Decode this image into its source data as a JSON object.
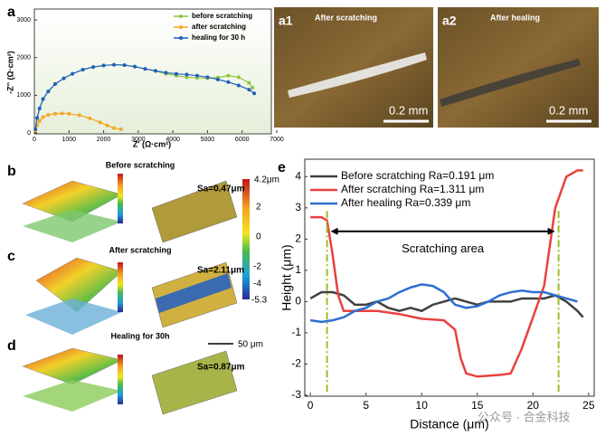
{
  "chart_data": [
    {
      "type": "line",
      "xlabel": "Z' (Ω·cm²)",
      "ylabel": "-Z'' (Ω·cm²)",
      "xlim": [
        0,
        7000
      ],
      "xticks": [
        0,
        1000,
        2000,
        3000,
        4000,
        5000,
        6000,
        7000
      ],
      "ylim": [
        0,
        3000
      ],
      "yticks": [
        0,
        1000,
        2000,
        3000
      ],
      "markers": true,
      "series": [
        {
          "name": "before scratching",
          "color": "#8dc63f",
          "x": [
            30,
            80,
            150,
            250,
            400,
            600,
            850,
            1100,
            1400,
            1700,
            2000,
            2300,
            2600,
            2900,
            3200,
            3500,
            3800,
            4100,
            4400,
            4700,
            5000,
            5300,
            5600,
            5900,
            6200,
            6300
          ],
          "values": [
            100,
            400,
            650,
            900,
            1100,
            1300,
            1450,
            1570,
            1680,
            1750,
            1790,
            1810,
            1800,
            1760,
            1700,
            1640,
            1570,
            1520,
            1480,
            1460,
            1450,
            1470,
            1520,
            1480,
            1330,
            1200
          ]
        },
        {
          "name": "after scratching",
          "color": "#f5a623",
          "x": [
            30,
            80,
            150,
            250,
            400,
            600,
            800,
            1000,
            1300,
            1600,
            1900,
            2100,
            2300,
            2500
          ],
          "values": [
            60,
            200,
            320,
            420,
            480,
            510,
            520,
            510,
            470,
            390,
            280,
            200,
            130,
            100
          ]
        },
        {
          "name": "healing for 30 h",
          "color": "#1f5fbf",
          "x": [
            30,
            80,
            150,
            250,
            400,
            600,
            850,
            1100,
            1400,
            1700,
            2000,
            2300,
            2600,
            2900,
            3200,
            3500,
            3800,
            4100,
            4400,
            4700,
            5000,
            5300,
            5600,
            5900,
            6200,
            6350
          ],
          "values": [
            100,
            400,
            650,
            900,
            1100,
            1300,
            1450,
            1570,
            1680,
            1750,
            1790,
            1810,
            1800,
            1760,
            1700,
            1650,
            1600,
            1570,
            1550,
            1520,
            1480,
            1420,
            1350,
            1260,
            1150,
            1050
          ]
        }
      ]
    },
    {
      "type": "line",
      "xlabel": "Distance (μm)",
      "ylabel": "Height (μm)",
      "annotation": "Scratching area",
      "xlim": [
        -0.5,
        25.5
      ],
      "xticks": [
        0,
        5,
        10,
        15,
        20,
        25
      ],
      "ylim": [
        -3,
        4.5
      ],
      "yticks": [
        -3,
        -2,
        -1,
        0,
        1,
        2,
        3,
        4
      ],
      "markers": false,
      "series": [
        {
          "name": "Before scratching Ra=0.191 μm",
          "color": "#404040",
          "x": [
            0,
            1,
            2,
            3,
            4,
            5,
            6,
            7,
            8,
            9,
            10,
            11,
            12,
            13,
            14,
            15,
            16,
            17,
            18,
            19,
            20,
            21,
            22,
            23,
            24,
            24.5
          ],
          "values": [
            0.1,
            0.3,
            0.3,
            0.2,
            -0.1,
            -0.1,
            0,
            -0.2,
            -0.3,
            -0.2,
            -0.3,
            -0.1,
            0,
            0.1,
            0,
            -0.1,
            0,
            0,
            0,
            0.1,
            0.1,
            0.1,
            0.2,
            0,
            -0.3,
            -0.5
          ]
        },
        {
          "name": "After scratching Ra=1.311 μm",
          "color": "#e8413f",
          "x": [
            0,
            1,
            1.5,
            2,
            2.5,
            3,
            4,
            6,
            8,
            10,
            12,
            13,
            13.5,
            14,
            15,
            17,
            18,
            19,
            20,
            21,
            22,
            23,
            24,
            24.5
          ],
          "values": [
            2.7,
            2.7,
            2.6,
            1.5,
            0.2,
            -0.3,
            -0.3,
            -0.3,
            -0.4,
            -0.55,
            -0.6,
            -0.9,
            -1.8,
            -2.3,
            -2.4,
            -2.35,
            -2.3,
            -1.5,
            -0.5,
            0.5,
            3,
            4,
            4.2,
            4.2
          ]
        },
        {
          "name": "After healing Ra=0.339 μm",
          "color": "#2e6fd0",
          "x": [
            0,
            1,
            2,
            3,
            4,
            5,
            6,
            7,
            8,
            9,
            10,
            11,
            12,
            13,
            14,
            15,
            16,
            17,
            18,
            19,
            20,
            21,
            22,
            23,
            24
          ],
          "values": [
            -0.6,
            -0.65,
            -0.6,
            -0.5,
            -0.3,
            -0.2,
            0,
            0.1,
            0.3,
            0.45,
            0.55,
            0.5,
            0.3,
            -0.1,
            -0.2,
            -0.15,
            0,
            0.2,
            0.3,
            0.35,
            0.3,
            0.3,
            0.2,
            0.1,
            0
          ]
        }
      ]
    }
  ],
  "figure": {
    "labels": [
      "a",
      "b",
      "c",
      "d",
      "e"
    ],
    "photos": [
      {
        "tag": "a1",
        "caption": "After scratching",
        "scale": "0.2 mm"
      },
      {
        "tag": "a2",
        "caption": "After healing",
        "scale": "0.2 mm"
      }
    ],
    "maps": [
      {
        "title": "Before scratching",
        "sa": "Sa=0.47μm"
      },
      {
        "title": "After scratching",
        "sa": "Sa=2.11μm"
      },
      {
        "title": "Healing for 30h",
        "sa": "Sa=0.87μm"
      }
    ],
    "colorbar": [
      "4.2μm",
      "2",
      "0",
      "-2",
      "-4",
      "-5.3"
    ],
    "scale_bar": "50 μm",
    "watermark": "公众号 · 合金科技"
  }
}
